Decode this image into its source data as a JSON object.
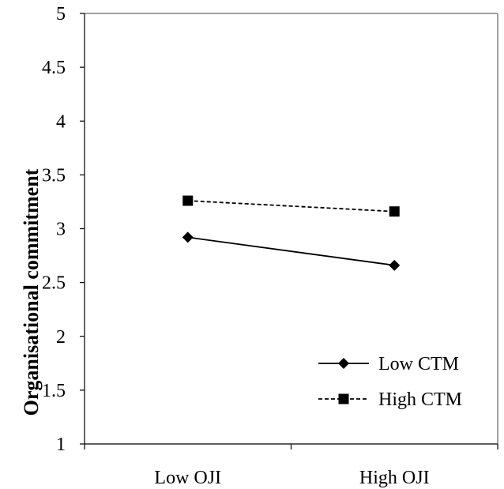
{
  "chart_data": {
    "type": "line",
    "title": "",
    "xlabel": "",
    "ylabel": "Organisational commitment",
    "categories": [
      "Low OJI",
      "High OJI"
    ],
    "ylim": [
      1,
      5
    ],
    "yticks": [
      "1",
      "1.5",
      "2",
      "2.5",
      "3",
      "3.5",
      "4",
      "4.5",
      "5"
    ],
    "grid": false,
    "legend_position": "bottom-right",
    "series": [
      {
        "name": "Low CTM",
        "values": [
          2.92,
          2.66
        ],
        "marker": "diamond",
        "line_style": "solid",
        "color": "#000000"
      },
      {
        "name": "High CTM",
        "values": [
          3.26,
          3.16
        ],
        "marker": "square",
        "line_style": "dashed",
        "color": "#000000"
      }
    ]
  }
}
